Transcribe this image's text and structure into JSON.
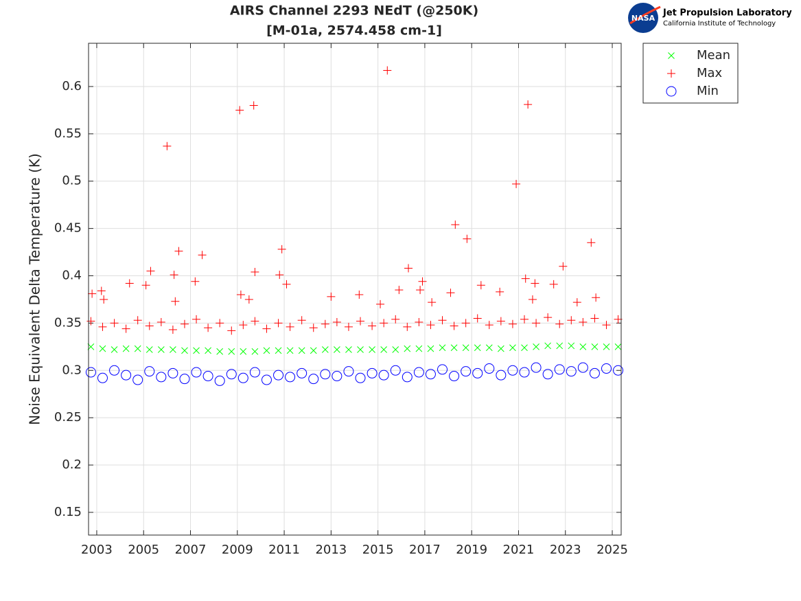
{
  "chart_data": {
    "type": "scatter",
    "title": [
      "AIRS Channel 2293 NEdT (@250K)",
      "[M-01a, 2574.458 cm-1]"
    ],
    "y_label": "Noise Equivalent Delta Temperature (K)",
    "xlim": [
      2002.65,
      2025.38
    ],
    "xticks": [
      2003,
      2005,
      2007,
      2009,
      2011,
      2013,
      2015,
      2017,
      2019,
      2021,
      2023,
      2025
    ],
    "ylim": [
      0.126,
      0.6457
    ],
    "yticks": [
      0.15,
      0.2,
      0.25,
      0.3,
      0.35,
      0.4,
      0.45,
      0.5,
      0.55,
      0.6
    ],
    "grid": true,
    "legend": "outside-top-right",
    "series": [
      {
        "name": "Mean",
        "color": "#00ff00",
        "marker": "x",
        "x": [
          2002.75,
          2003.25,
          2003.75,
          2004.25,
          2004.75,
          2005.25,
          2005.75,
          2006.25,
          2006.75,
          2007.25,
          2007.75,
          2008.25,
          2008.75,
          2009.25,
          2009.75,
          2010.25,
          2010.75,
          2011.25,
          2011.75,
          2012.25,
          2012.75,
          2013.25,
          2013.75,
          2014.25,
          2014.75,
          2015.25,
          2015.75,
          2016.25,
          2016.75,
          2017.25,
          2017.75,
          2018.25,
          2018.75,
          2019.25,
          2019.75,
          2020.25,
          2020.75,
          2021.25,
          2021.75,
          2022.25,
          2022.75,
          2023.25,
          2023.75,
          2024.25,
          2024.75,
          2025.25
        ],
        "values": [
          0.325,
          0.323,
          0.322,
          0.323,
          0.323,
          0.322,
          0.322,
          0.322,
          0.321,
          0.321,
          0.321,
          0.32,
          0.32,
          0.32,
          0.32,
          0.321,
          0.321,
          0.321,
          0.321,
          0.321,
          0.322,
          0.322,
          0.322,
          0.322,
          0.322,
          0.322,
          0.322,
          0.323,
          0.323,
          0.323,
          0.324,
          0.324,
          0.324,
          0.324,
          0.324,
          0.323,
          0.324,
          0.324,
          0.325,
          0.326,
          0.326,
          0.326,
          0.325,
          0.325,
          0.325,
          0.325
        ]
      },
      {
        "name": "Max",
        "color": "#ff0000",
        "marker": "+",
        "x": [
          2002.75,
          2003.25,
          2003.75,
          2004.25,
          2004.75,
          2005.25,
          2005.75,
          2006.25,
          2006.75,
          2007.25,
          2007.75,
          2008.25,
          2008.75,
          2009.25,
          2009.75,
          2010.25,
          2010.75,
          2011.25,
          2011.75,
          2012.25,
          2012.75,
          2013.25,
          2013.75,
          2014.25,
          2014.75,
          2015.25,
          2015.75,
          2016.25,
          2016.75,
          2017.25,
          2017.75,
          2018.25,
          2018.75,
          2019.25,
          2019.75,
          2020.25,
          2020.75,
          2021.25,
          2021.75,
          2022.25,
          2022.75,
          2023.25,
          2023.75,
          2024.25,
          2024.75,
          2025.25,
          2002.8,
          2003.2,
          2003.3,
          2004.4,
          2005.1,
          2005.3,
          2006.0,
          2006.3,
          2006.35,
          2006.5,
          2007.2,
          2007.5,
          2009.1,
          2009.15,
          2009.5,
          2009.7,
          2009.75,
          2010.8,
          2010.9,
          2011.1,
          2013.0,
          2014.2,
          2015.1,
          2015.4,
          2015.9,
          2016.3,
          2016.8,
          2016.9,
          2017.3,
          2018.1,
          2018.3,
          2018.8,
          2019.4,
          2020.2,
          2020.9,
          2021.3,
          2021.4,
          2021.6,
          2021.7,
          2022.5,
          2022.9,
          2023.5,
          2024.1,
          2024.3
        ],
        "values": [
          0.352,
          0.346,
          0.35,
          0.344,
          0.353,
          0.347,
          0.351,
          0.343,
          0.349,
          0.354,
          0.345,
          0.35,
          0.342,
          0.348,
          0.352,
          0.344,
          0.35,
          0.346,
          0.353,
          0.345,
          0.349,
          0.351,
          0.346,
          0.352,
          0.347,
          0.35,
          0.354,
          0.346,
          0.351,
          0.348,
          0.353,
          0.347,
          0.35,
          0.355,
          0.348,
          0.352,
          0.349,
          0.354,
          0.35,
          0.356,
          0.349,
          0.353,
          0.351,
          0.355,
          0.348,
          0.354,
          0.381,
          0.384,
          0.375,
          0.392,
          0.39,
          0.405,
          0.537,
          0.401,
          0.373,
          0.426,
          0.394,
          0.422,
          0.575,
          0.38,
          0.375,
          0.58,
          0.404,
          0.401,
          0.428,
          0.391,
          0.378,
          0.38,
          0.37,
          0.617,
          0.385,
          0.408,
          0.385,
          0.394,
          0.372,
          0.382,
          0.454,
          0.439,
          0.39,
          0.383,
          0.497,
          0.397,
          0.581,
          0.375,
          0.392,
          0.391,
          0.41,
          0.372,
          0.435,
          0.377
        ]
      },
      {
        "name": "Min",
        "color": "#0000ff",
        "marker": "o",
        "x": [
          2002.75,
          2003.25,
          2003.75,
          2004.25,
          2004.75,
          2005.25,
          2005.75,
          2006.25,
          2006.75,
          2007.25,
          2007.75,
          2008.25,
          2008.75,
          2009.25,
          2009.75,
          2010.25,
          2010.75,
          2011.25,
          2011.75,
          2012.25,
          2012.75,
          2013.25,
          2013.75,
          2014.25,
          2014.75,
          2015.25,
          2015.75,
          2016.25,
          2016.75,
          2017.25,
          2017.75,
          2018.25,
          2018.75,
          2019.25,
          2019.75,
          2020.25,
          2020.75,
          2021.25,
          2021.75,
          2022.25,
          2022.75,
          2023.25,
          2023.75,
          2024.25,
          2024.75,
          2025.25
        ],
        "values": [
          0.298,
          0.292,
          0.3,
          0.295,
          0.29,
          0.299,
          0.293,
          0.297,
          0.291,
          0.298,
          0.294,
          0.289,
          0.296,
          0.292,
          0.298,
          0.29,
          0.295,
          0.293,
          0.297,
          0.291,
          0.296,
          0.294,
          0.299,
          0.292,
          0.297,
          0.295,
          0.3,
          0.293,
          0.298,
          0.296,
          0.301,
          0.294,
          0.299,
          0.297,
          0.302,
          0.295,
          0.3,
          0.298,
          0.303,
          0.296,
          0.301,
          0.299,
          0.303,
          0.297,
          0.302,
          0.3
        ]
      }
    ]
  },
  "logo": {
    "badge": "NASA",
    "name": "Jet Propulsion Laboratory",
    "institution": "California Institute of Technology"
  }
}
